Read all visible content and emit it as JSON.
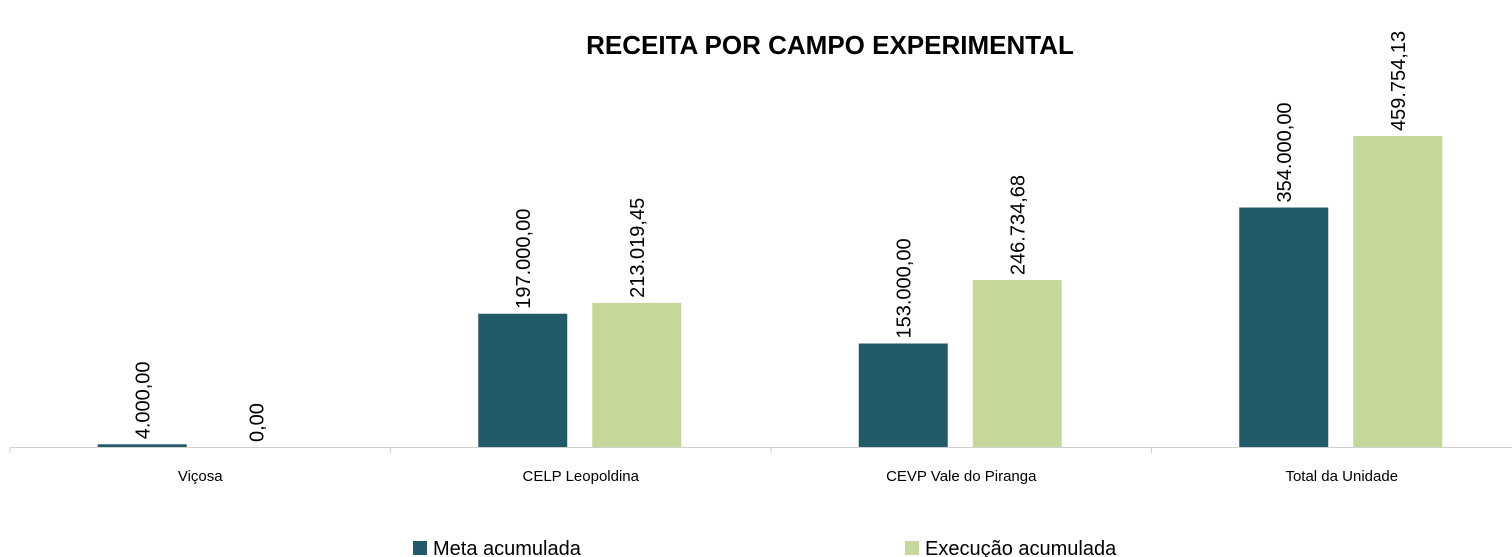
{
  "chart_data": {
    "type": "bar",
    "title": "RECEITA POR CAMPO EXPERIMENTAL",
    "categories": [
      "Viçosa",
      "CELP Leopoldina",
      "CEVP Vale do Piranga",
      "Total da Unidade"
    ],
    "series": [
      {
        "name": "Meta acumulada",
        "color": "#235a69",
        "values": [
          4000,
          197000,
          153000,
          354000
        ],
        "value_labels": [
          "4.000,00",
          "197.000,00",
          "153.000,00",
          "354.000,00"
        ]
      },
      {
        "name": "Execução acumulada",
        "color": "#c5d79a",
        "values": [
          0,
          213019.45,
          246734.68,
          459754.13
        ],
        "value_labels": [
          "0,00",
          "213.019,45",
          "246.734,68",
          "459.754,13"
        ]
      }
    ],
    "legend": "bottom"
  }
}
